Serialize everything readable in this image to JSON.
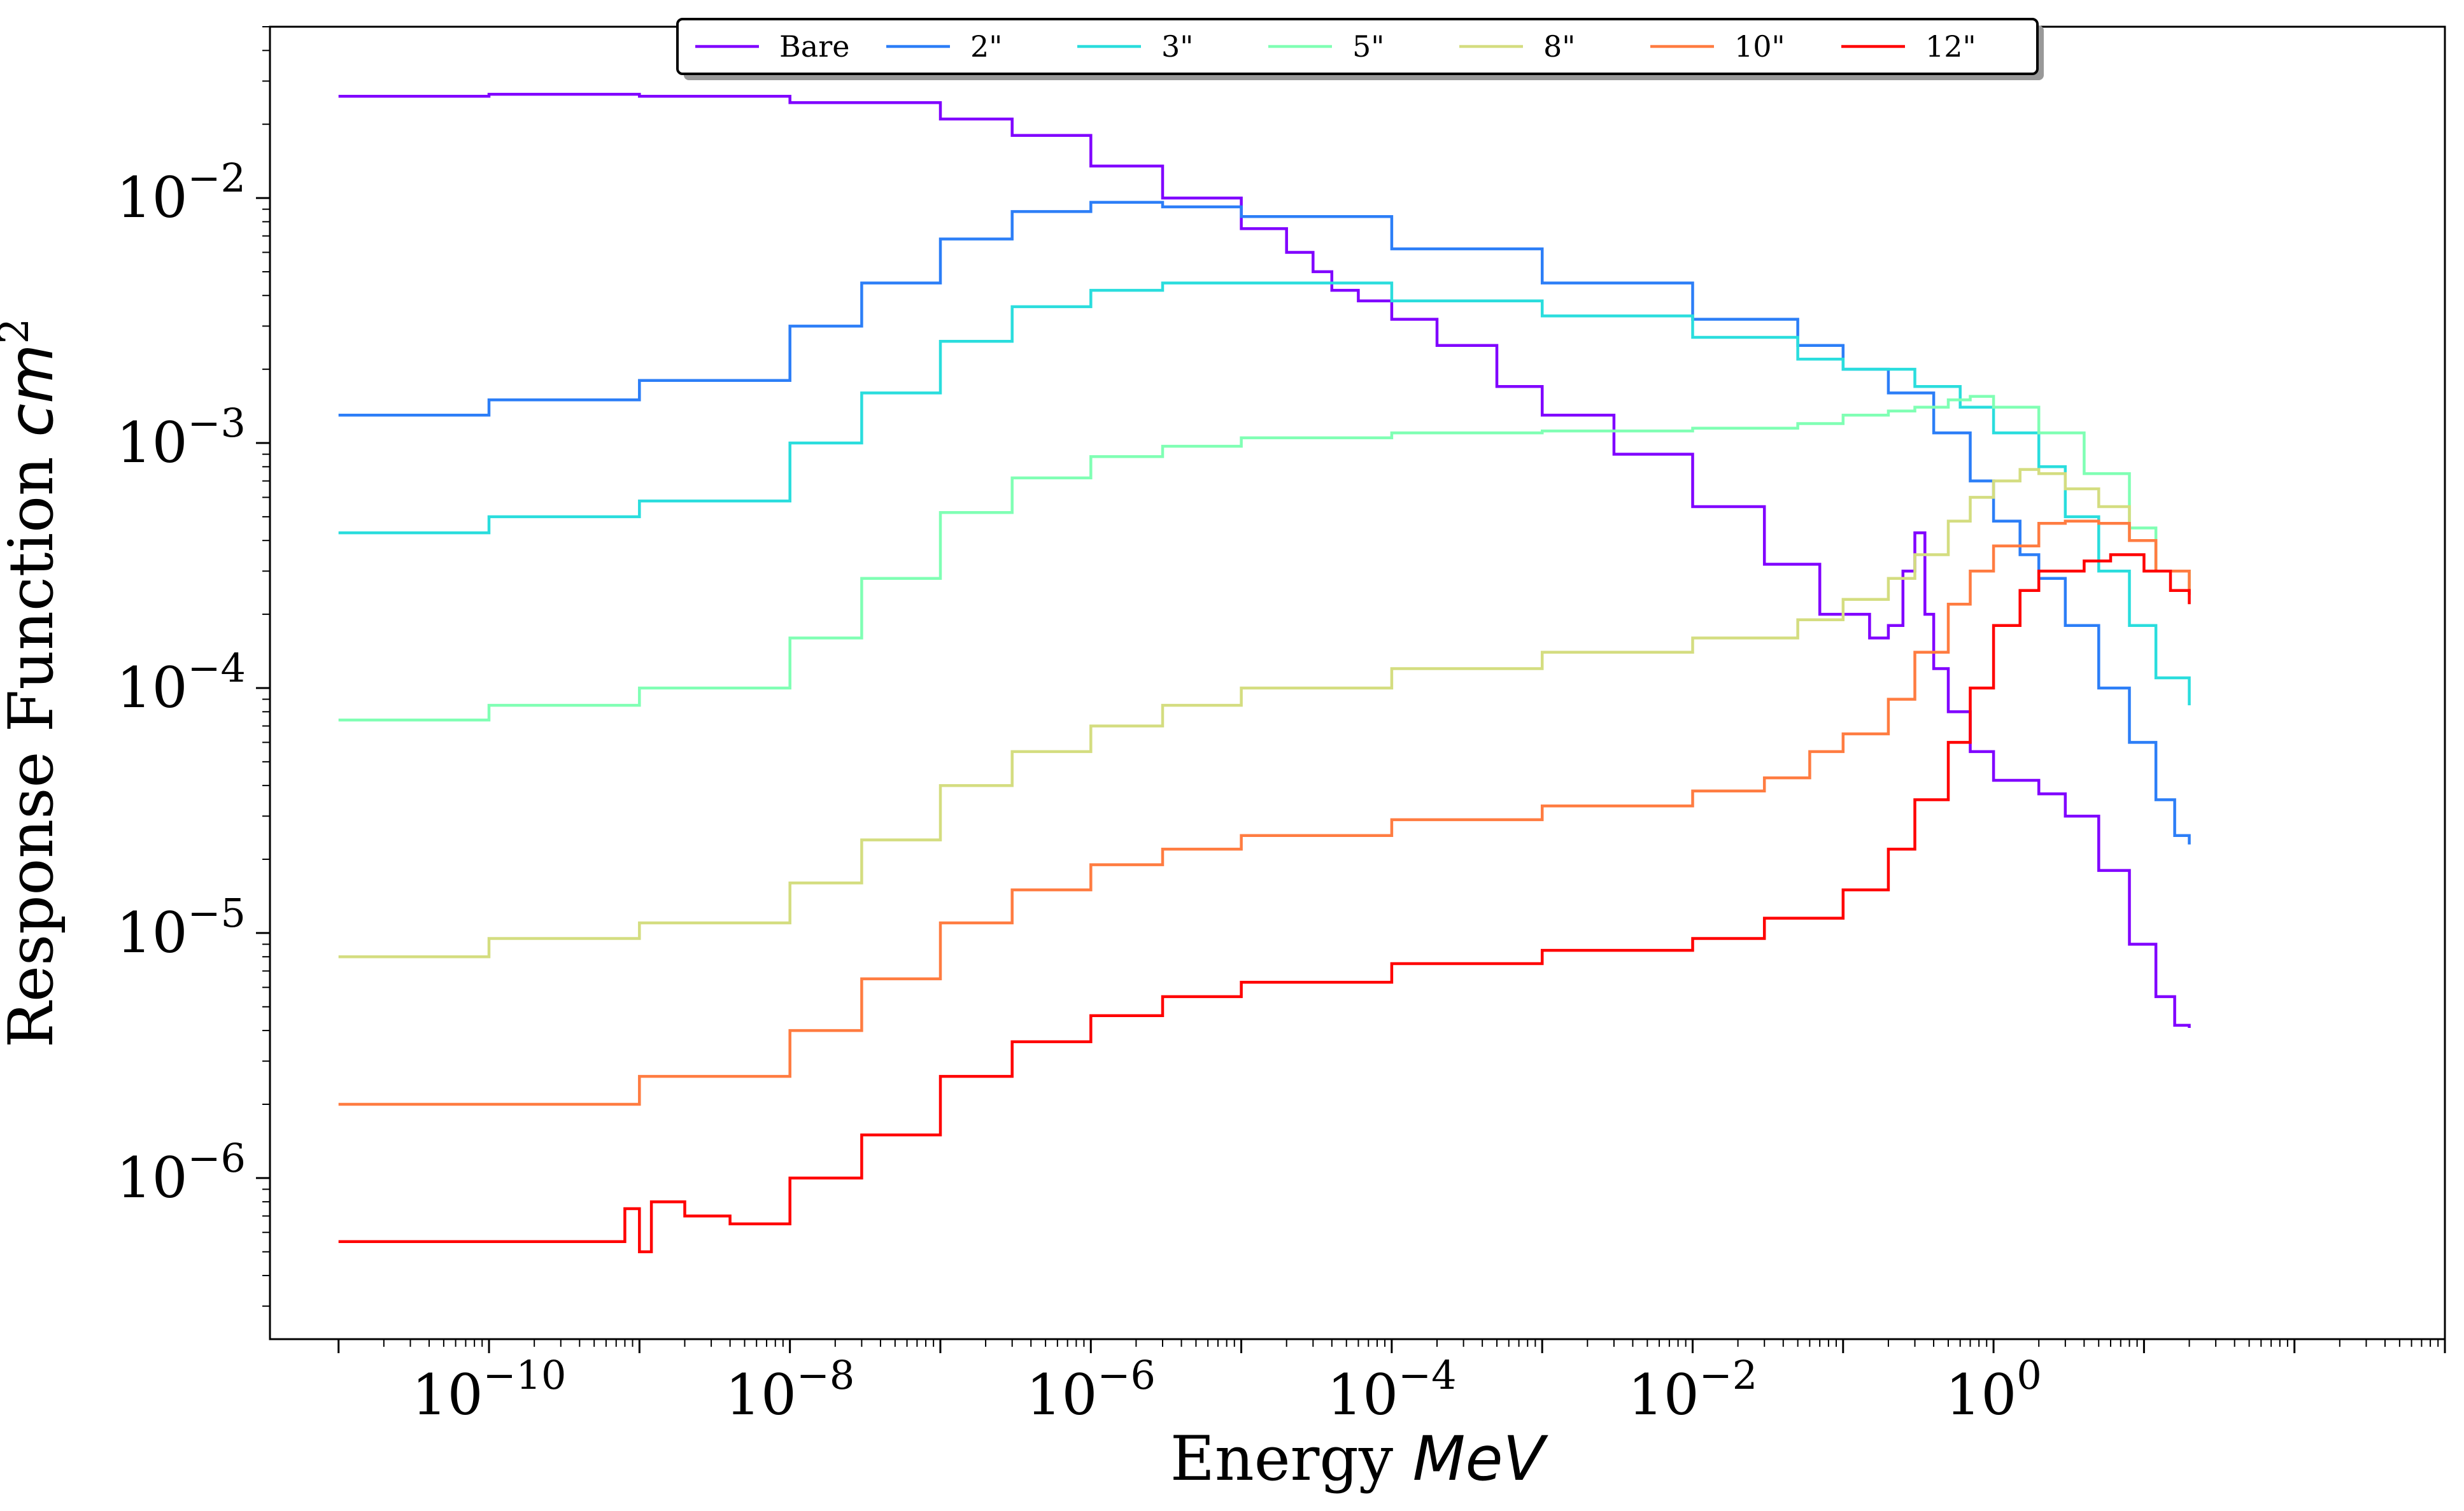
{
  "chart_data": {
    "type": "line",
    "title": "",
    "xlabel": "Energy",
    "xlabel_unit": "MeV",
    "ylabel": "Response Function",
    "ylabel_unit": "cm",
    "ylabel_unit_exp": "2",
    "x_scale": "log",
    "y_scale": "log",
    "xlim": [
      3.5e-12,
      1000
    ],
    "ylim": [
      2.2e-07,
      0.05
    ],
    "x_ticks": [
      {
        "value": 1e-10,
        "base": "10",
        "exp": "−10"
      },
      {
        "value": 1e-08,
        "base": "10",
        "exp": "−8"
      },
      {
        "value": 1e-06,
        "base": "10",
        "exp": "−6"
      },
      {
        "value": 0.0001,
        "base": "10",
        "exp": "−4"
      },
      {
        "value": 0.01,
        "base": "10",
        "exp": "−2"
      },
      {
        "value": 1,
        "base": "10",
        "exp": "0"
      }
    ],
    "y_ticks": [
      {
        "value": 1e-06,
        "base": "10",
        "exp": "−6"
      },
      {
        "value": 1e-05,
        "base": "10",
        "exp": "−5"
      },
      {
        "value": 0.0001,
        "base": "10",
        "exp": "−4"
      },
      {
        "value": 0.001,
        "base": "10",
        "exp": "−3"
      },
      {
        "value": 0.01,
        "base": "10",
        "exp": "−2"
      }
    ],
    "grid": false,
    "legend_position": "top-center",
    "series": [
      {
        "name": "Bare",
        "color": "#8000ff",
        "points": [
          [
            1e-11,
            0.026
          ],
          [
            1e-10,
            0.0265
          ],
          [
            1e-09,
            0.026
          ],
          [
            1e-08,
            0.0245
          ],
          [
            1e-07,
            0.021
          ],
          [
            3e-07,
            0.018
          ],
          [
            1e-06,
            0.0135
          ],
          [
            3e-06,
            0.01
          ],
          [
            1e-05,
            0.0075
          ],
          [
            2e-05,
            0.006
          ],
          [
            3e-05,
            0.005
          ],
          [
            4e-05,
            0.0042
          ],
          [
            6e-05,
            0.0038
          ],
          [
            0.0001,
            0.0032
          ],
          [
            0.0002,
            0.0025
          ],
          [
            0.0005,
            0.0017
          ],
          [
            0.001,
            0.0013
          ],
          [
            0.003,
            0.0009
          ],
          [
            0.01,
            0.00055
          ],
          [
            0.03,
            0.00032
          ],
          [
            0.07,
            0.0002
          ],
          [
            0.15,
            0.00016
          ],
          [
            0.2,
            0.00018
          ],
          [
            0.25,
            0.0003
          ],
          [
            0.3,
            0.00043
          ],
          [
            0.35,
            0.0002
          ],
          [
            0.4,
            0.00012
          ],
          [
            0.5,
            8e-05
          ],
          [
            0.7,
            5.5e-05
          ],
          [
            1,
            4.2e-05
          ],
          [
            2,
            3.7e-05
          ],
          [
            3,
            3e-05
          ],
          [
            5,
            1.8e-05
          ],
          [
            8,
            9e-06
          ],
          [
            12,
            5.5e-06
          ],
          [
            16,
            4.2e-06
          ],
          [
            20,
            4.1e-06
          ]
        ]
      },
      {
        "name": "2\"",
        "color": "#2c7ef7",
        "points": [
          [
            1e-11,
            0.0013
          ],
          [
            1e-10,
            0.0015
          ],
          [
            1e-09,
            0.0018
          ],
          [
            1e-08,
            0.003
          ],
          [
            3e-08,
            0.0045
          ],
          [
            1e-07,
            0.0068
          ],
          [
            3e-07,
            0.0088
          ],
          [
            1e-06,
            0.0096
          ],
          [
            3e-06,
            0.0092
          ],
          [
            1e-05,
            0.0084
          ],
          [
            0.0001,
            0.0062
          ],
          [
            0.001,
            0.0045
          ],
          [
            0.01,
            0.0032
          ],
          [
            0.05,
            0.0025
          ],
          [
            0.1,
            0.002
          ],
          [
            0.2,
            0.0016
          ],
          [
            0.4,
            0.0011
          ],
          [
            0.7,
            0.0007
          ],
          [
            1,
            0.00048
          ],
          [
            1.5,
            0.00035
          ],
          [
            2,
            0.00028
          ],
          [
            3,
            0.00018
          ],
          [
            5,
            0.0001
          ],
          [
            8,
            6e-05
          ],
          [
            12,
            3.5e-05
          ],
          [
            16,
            2.5e-05
          ],
          [
            20,
            2.3e-05
          ]
        ]
      },
      {
        "name": "3\"",
        "color": "#2adddd",
        "points": [
          [
            1e-11,
            0.00043
          ],
          [
            1e-10,
            0.0005
          ],
          [
            1e-09,
            0.00058
          ],
          [
            1e-08,
            0.001
          ],
          [
            3e-08,
            0.0016
          ],
          [
            1e-07,
            0.0026
          ],
          [
            3e-07,
            0.0036
          ],
          [
            1e-06,
            0.0042
          ],
          [
            3e-06,
            0.0045
          ],
          [
            1e-05,
            0.0045
          ],
          [
            0.0001,
            0.0038
          ],
          [
            0.001,
            0.0033
          ],
          [
            0.01,
            0.0027
          ],
          [
            0.05,
            0.0022
          ],
          [
            0.1,
            0.002
          ],
          [
            0.3,
            0.0017
          ],
          [
            0.6,
            0.0014
          ],
          [
            1,
            0.0011
          ],
          [
            2,
            0.0008
          ],
          [
            3,
            0.0005
          ],
          [
            5,
            0.0003
          ],
          [
            8,
            0.00018
          ],
          [
            12,
            0.00011
          ],
          [
            20,
            8.5e-05
          ]
        ]
      },
      {
        "name": "5\"",
        "color": "#80ffb4",
        "points": [
          [
            1e-11,
            7.4e-05
          ],
          [
            1e-10,
            8.5e-05
          ],
          [
            1e-09,
            0.0001
          ],
          [
            1e-08,
            0.00016
          ],
          [
            3e-08,
            0.00028
          ],
          [
            1e-07,
            0.00052
          ],
          [
            3e-07,
            0.00072
          ],
          [
            1e-06,
            0.00088
          ],
          [
            3e-06,
            0.00097
          ],
          [
            1e-05,
            0.00105
          ],
          [
            0.0001,
            0.0011
          ],
          [
            0.001,
            0.00112
          ],
          [
            0.01,
            0.00115
          ],
          [
            0.05,
            0.0012
          ],
          [
            0.1,
            0.0013
          ],
          [
            0.2,
            0.00135
          ],
          [
            0.3,
            0.0014
          ],
          [
            0.5,
            0.0015
          ],
          [
            0.7,
            0.00155
          ],
          [
            1,
            0.0014
          ],
          [
            2,
            0.0011
          ],
          [
            4,
            0.00075
          ],
          [
            8,
            0.00045
          ],
          [
            12,
            0.0003
          ],
          [
            20,
            0.00026
          ]
        ]
      },
      {
        "name": "8\"",
        "color": "#d4dd80",
        "points": [
          [
            1e-11,
            8e-06
          ],
          [
            1e-10,
            9.5e-06
          ],
          [
            1e-09,
            1.1e-05
          ],
          [
            1e-08,
            1.6e-05
          ],
          [
            3e-08,
            2.4e-05
          ],
          [
            1e-07,
            4e-05
          ],
          [
            3e-07,
            5.5e-05
          ],
          [
            1e-06,
            7e-05
          ],
          [
            3e-06,
            8.5e-05
          ],
          [
            1e-05,
            0.0001
          ],
          [
            0.0001,
            0.00012
          ],
          [
            0.001,
            0.00014
          ],
          [
            0.01,
            0.00016
          ],
          [
            0.05,
            0.00019
          ],
          [
            0.1,
            0.00023
          ],
          [
            0.2,
            0.00028
          ],
          [
            0.3,
            0.00035
          ],
          [
            0.5,
            0.00048
          ],
          [
            0.7,
            0.0006
          ],
          [
            1,
            0.0007
          ],
          [
            1.5,
            0.00078
          ],
          [
            2,
            0.00075
          ],
          [
            3,
            0.00065
          ],
          [
            5,
            0.00055
          ],
          [
            8,
            0.0004
          ],
          [
            12,
            0.0003
          ],
          [
            20,
            0.00025
          ]
        ]
      },
      {
        "name": "10\"",
        "color": "#ff7c41",
        "points": [
          [
            1e-11,
            2e-06
          ],
          [
            1e-10,
            2e-06
          ],
          [
            1e-09,
            2.6e-06
          ],
          [
            1e-08,
            4e-06
          ],
          [
            3e-08,
            6.5e-06
          ],
          [
            1e-07,
            1.1e-05
          ],
          [
            3e-07,
            1.5e-05
          ],
          [
            1e-06,
            1.9e-05
          ],
          [
            3e-06,
            2.2e-05
          ],
          [
            1e-05,
            2.5e-05
          ],
          [
            0.0001,
            2.9e-05
          ],
          [
            0.001,
            3.3e-05
          ],
          [
            0.01,
            3.8e-05
          ],
          [
            0.03,
            4.3e-05
          ],
          [
            0.06,
            5.5e-05
          ],
          [
            0.1,
            6.5e-05
          ],
          [
            0.2,
            9e-05
          ],
          [
            0.3,
            0.00014
          ],
          [
            0.5,
            0.00022
          ],
          [
            0.7,
            0.0003
          ],
          [
            1,
            0.00038
          ],
          [
            2,
            0.00047
          ],
          [
            3,
            0.00048
          ],
          [
            5,
            0.00047
          ],
          [
            8,
            0.0004
          ],
          [
            12,
            0.0003
          ],
          [
            20,
            0.00024
          ]
        ]
      },
      {
        "name": "12\"",
        "color": "#ff0000",
        "points": [
          [
            1e-11,
            5.5e-07
          ],
          [
            1e-10,
            5.5e-07
          ],
          [
            5e-10,
            5.5e-07
          ],
          [
            8e-10,
            7.5e-07
          ],
          [
            1e-09,
            5e-07
          ],
          [
            1.2e-09,
            8e-07
          ],
          [
            2e-09,
            7e-07
          ],
          [
            4e-09,
            6.5e-07
          ],
          [
            1e-08,
            1e-06
          ],
          [
            3e-08,
            1.5e-06
          ],
          [
            1e-07,
            2.6e-06
          ],
          [
            3e-07,
            3.6e-06
          ],
          [
            1e-06,
            4.6e-06
          ],
          [
            3e-06,
            5.5e-06
          ],
          [
            1e-05,
            6.3e-06
          ],
          [
            0.0001,
            7.5e-06
          ],
          [
            0.001,
            8.5e-06
          ],
          [
            0.01,
            9.5e-06
          ],
          [
            0.03,
            1.15e-05
          ],
          [
            0.1,
            1.5e-05
          ],
          [
            0.2,
            2.2e-05
          ],
          [
            0.3,
            3.5e-05
          ],
          [
            0.5,
            6e-05
          ],
          [
            0.7,
            0.0001
          ],
          [
            1,
            0.00018
          ],
          [
            1.5,
            0.00025
          ],
          [
            2,
            0.0003
          ],
          [
            4,
            0.00033
          ],
          [
            6,
            0.00035
          ],
          [
            10,
            0.0003
          ],
          [
            15,
            0.00025
          ],
          [
            20,
            0.00022
          ]
        ]
      }
    ]
  }
}
